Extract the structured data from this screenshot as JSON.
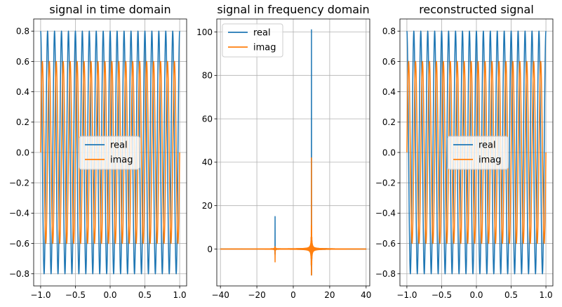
{
  "chart_data": [
    {
      "type": "line",
      "title": "signal in time domain",
      "xlabel": "",
      "ylabel": "",
      "xlim": [
        -1.1,
        1.1
      ],
      "ylim": [
        -0.88,
        0.88
      ],
      "xticks": [
        -1.0,
        -0.5,
        0.0,
        0.5,
        1.0
      ],
      "xtick_labels": [
        "−1.0",
        "−0.5",
        "0.0",
        "0.5",
        "1.0"
      ],
      "yticks": [
        -0.8,
        -0.6,
        -0.4,
        -0.2,
        0.0,
        0.2,
        0.4,
        0.6,
        0.8
      ],
      "ytick_labels": [
        "−0.8",
        "−0.6",
        "−0.4",
        "−0.2",
        "0.0",
        "0.2",
        "0.4",
        "0.6",
        "0.8"
      ],
      "grid": true,
      "legend": "center",
      "signal": {
        "x_range": [
          -1.0,
          1.0
        ],
        "tone_frequency": 10,
        "real_amplitude": 0.8,
        "imag_amplitude": 0.6,
        "cycles_shown": 20
      },
      "series": [
        {
          "name": "real",
          "color": "#1f77b4"
        },
        {
          "name": "imag",
          "color": "#ff7f0e"
        }
      ]
    },
    {
      "type": "line",
      "title": "signal in frequency domain",
      "xlabel": "",
      "ylabel": "",
      "xlim": [
        -42,
        42
      ],
      "ylim": [
        -17,
        106
      ],
      "xticks": [
        -40,
        -20,
        0,
        20,
        40
      ],
      "xtick_labels": [
        "−40",
        "−20",
        "0",
        "20",
        "40"
      ],
      "yticks": [
        0,
        20,
        40,
        60,
        80,
        100
      ],
      "ytick_labels": [
        "0",
        "20",
        "40",
        "60",
        "80",
        "100"
      ],
      "grid": true,
      "legend": "top-left",
      "peaks": [
        {
          "x": 10,
          "real": 101,
          "imag": 42
        },
        {
          "x": -10,
          "real": 15,
          "imag": -6
        }
      ],
      "real_min_near_peak": -11,
      "series": [
        {
          "name": "real",
          "color": "#1f77b4"
        },
        {
          "name": "imag",
          "color": "#ff7f0e"
        }
      ]
    },
    {
      "type": "line",
      "title": "reconstructed signal",
      "xlabel": "",
      "ylabel": "",
      "xlim": [
        -1.1,
        1.1
      ],
      "ylim": [
        -0.88,
        0.88
      ],
      "xticks": [
        -1.0,
        -0.5,
        0.0,
        0.5,
        1.0
      ],
      "xtick_labels": [
        "−1.0",
        "−0.5",
        "0.0",
        "0.5",
        "1.0"
      ],
      "yticks": [
        -0.8,
        -0.6,
        -0.4,
        -0.2,
        0.0,
        0.2,
        0.4,
        0.6,
        0.8
      ],
      "ytick_labels": [
        "−0.8",
        "−0.6",
        "−0.4",
        "−0.2",
        "0.0",
        "0.2",
        "0.4",
        "0.6",
        "0.8"
      ],
      "grid": true,
      "legend": "center-right",
      "signal": {
        "x_range": [
          -1.0,
          1.0
        ],
        "tone_frequency": 10,
        "real_amplitude": 0.8,
        "imag_amplitude": 0.6,
        "cycles_shown": 20
      },
      "series": [
        {
          "name": "real",
          "color": "#1f77b4"
        },
        {
          "name": "imag",
          "color": "#ff7f0e"
        }
      ]
    }
  ]
}
